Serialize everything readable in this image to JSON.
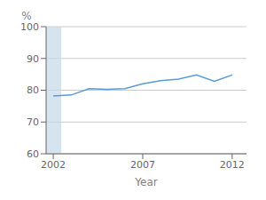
{
  "chart_data": {
    "type": "line",
    "x": [
      2002,
      2003,
      2004,
      2005,
      2006,
      2007,
      2008,
      2009,
      2010,
      2011,
      2012
    ],
    "values": [
      78.2,
      78.5,
      80.5,
      80.3,
      80.5,
      82.0,
      83.0,
      83.5,
      84.8,
      82.8,
      84.8
    ],
    "color": "#5b9bd5",
    "xlabel": "Year",
    "xlim": [
      2001.6,
      2012.8
    ],
    "xticks": [
      2002,
      2007,
      2012
    ],
    "ylim": [
      60,
      100
    ],
    "yticks": [
      60,
      70,
      80,
      90,
      100
    ],
    "grid": true,
    "annotations": [
      {
        "text": "%"
      }
    ],
    "shade": {
      "x": [
        2001.6,
        2002.45
      ],
      "color": "#c5d8ea"
    }
  }
}
